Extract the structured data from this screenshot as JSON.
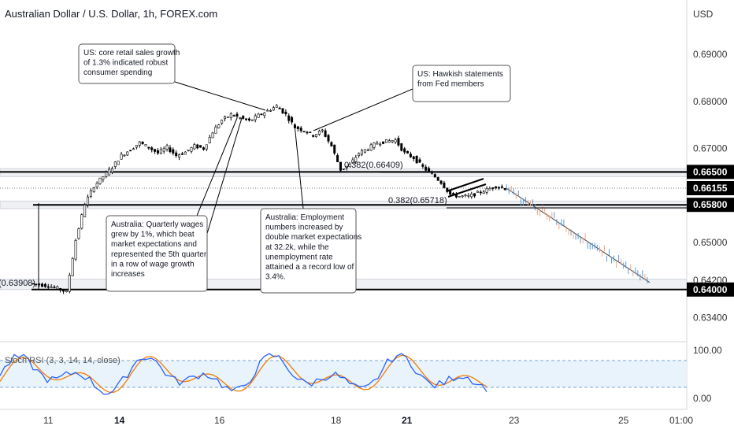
{
  "chart_data": {
    "type": "candlestick",
    "title": "Australian Dollar / U.S. Dollar, 1h, FOREX.com",
    "currency": "USD",
    "y_ticks": [
      "0.69000",
      "0.68000",
      "0.67000",
      "0.65000",
      "0.64200",
      "0.63400"
    ],
    "ylim": [
      0.6301,
      0.6945
    ],
    "x_ticks": [
      "11",
      "14",
      "16",
      "18",
      "21",
      "23",
      "25",
      "01:00"
    ],
    "horizontal_levels": [
      {
        "label": "0.66500",
        "value": 0.665,
        "style": "solid-bold",
        "color": "#000000"
      },
      {
        "label": "0.66155",
        "value": 0.66155,
        "style": "dotted",
        "color": "#000000"
      },
      {
        "label": "0.65800",
        "value": 0.658,
        "style": "solid-bold",
        "color": "#000000"
      },
      {
        "label": "0.64000",
        "value": 0.64,
        "style": "solid-bold",
        "color": "#000000"
      }
    ],
    "fib_labels": [
      {
        "text": "0.382(0.66409)",
        "value": 0.66409
      },
      {
        "text": "0.382(0.65718)",
        "value": 0.65718
      },
      {
        "text": "(0.63908)",
        "value": 0.63908
      }
    ],
    "price_path": [
      [
        0,
        0.6413
      ],
      [
        2,
        0.6408
      ],
      [
        3,
        0.6402
      ],
      [
        4,
        0.6395
      ],
      [
        5,
        0.6505
      ],
      [
        6,
        0.6582
      ],
      [
        7,
        0.662
      ],
      [
        8,
        0.664
      ],
      [
        9,
        0.666
      ],
      [
        10,
        0.6685
      ],
      [
        11,
        0.6698
      ],
      [
        12,
        0.6712
      ],
      [
        13,
        0.6702
      ],
      [
        14,
        0.669
      ],
      [
        15,
        0.6702
      ],
      [
        16,
        0.6685
      ],
      [
        17,
        0.6692
      ],
      [
        18,
        0.6705
      ],
      [
        19,
        0.67
      ],
      [
        20,
        0.6735
      ],
      [
        21,
        0.676
      ],
      [
        22,
        0.6772
      ],
      [
        23,
        0.6765
      ],
      [
        24,
        0.6758
      ],
      [
        25,
        0.677
      ],
      [
        26,
        0.678
      ],
      [
        27,
        0.679
      ],
      [
        28,
        0.6772
      ],
      [
        29,
        0.6745
      ],
      [
        30,
        0.6738
      ],
      [
        31,
        0.6728
      ],
      [
        32,
        0.6738
      ],
      [
        33,
        0.6705
      ],
      [
        34,
        0.6655
      ],
      [
        35,
        0.6665
      ],
      [
        36,
        0.669
      ],
      [
        37,
        0.67
      ],
      [
        38,
        0.6712
      ],
      [
        39,
        0.6715
      ],
      [
        40,
        0.6718
      ],
      [
        41,
        0.669
      ],
      [
        42,
        0.668
      ],
      [
        43,
        0.666
      ],
      [
        44,
        0.6645
      ],
      [
        45,
        0.6628
      ],
      [
        46,
        0.6602
      ],
      [
        47,
        0.6598
      ],
      [
        48,
        0.6598
      ],
      [
        49,
        0.6605
      ],
      [
        50,
        0.6612
      ],
      [
        51,
        0.662
      ],
      [
        52,
        0.6615
      ]
    ],
    "projection": {
      "from": [
        52,
        0.6615
      ],
      "to": [
        64.5,
        0.6415
      ]
    },
    "stoch_rsi": {
      "label": "Stoch RSI (3, 3, 14, 14, close)",
      "y_ticks": [
        "100.00",
        "0.00"
      ],
      "bands": [
        20,
        80
      ]
    }
  },
  "annotations": [
    {
      "lines": [
        "US: core retail sales growth",
        "of 1.3% indicated robust",
        "consumer spending"
      ]
    },
    {
      "lines": [
        "US: Hawkish statements",
        "from Fed members"
      ]
    },
    {
      "lines": [
        "Australia: Quarterly wages",
        "grew by 1%, which beat",
        "market expectations and",
        "represented the 5th quarter",
        "in  a row of wage growth",
        "increases"
      ]
    },
    {
      "lines": [
        "Australia: Employment",
        "numbers increased by",
        "double market expectations",
        "at 32.2k, while the",
        "unemployment rate",
        "attained a a record low of",
        "3.4%."
      ]
    }
  ]
}
